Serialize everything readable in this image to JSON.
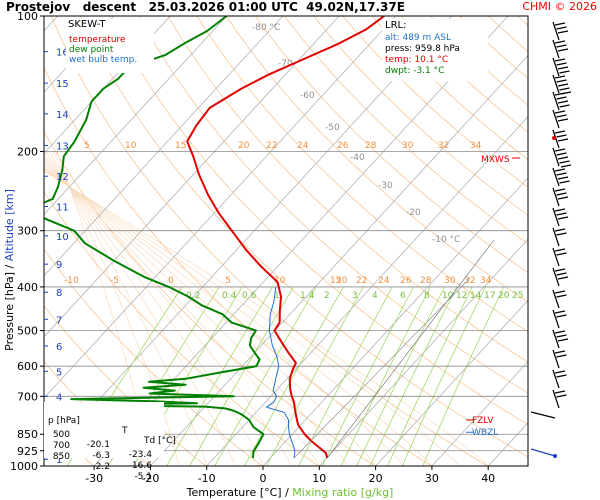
{
  "header": {
    "title": "Prostejov   descent   25.03.2026 01:00 UTC  49.02N,17.37E",
    "copyright": "CHMI © 2026"
  },
  "legend": {
    "title": "SKEW-T",
    "items": [
      {
        "label": "temperature",
        "color": "#e00000"
      },
      {
        "label": "dew point",
        "color": "#008000"
      },
      {
        "label": "wet bulb temp.",
        "color": "#1f6fd0"
      }
    ]
  },
  "lrl": {
    "title": "LRL:",
    "alt": "alt: 489 m ASL",
    "press": "press: 959.8 hPa",
    "temp": "temp: 10.1 °C",
    "dwpt": "dwpt: -3.1 °C"
  },
  "table": {
    "headers": [
      "p [hPa]",
      "T",
      "Td [°C]"
    ],
    "rows": [
      [
        "500",
        "-20.1",
        "-23.4"
      ],
      [
        "700",
        "-6.3",
        "-16.6"
      ],
      [
        "850",
        "2.2",
        "-5.1"
      ]
    ]
  },
  "chart_data": {
    "type": "line",
    "xlabel": "Temperature [°C]",
    "xlabel_extra": "Mixing ratio [g/kg]",
    "ylabel": "Pressure [hPa]",
    "ylabel_extra": "Altitude [km]",
    "x_ticks": [
      "-30",
      "-20",
      "-10",
      "0",
      "10",
      "20",
      "30",
      "40"
    ],
    "pressure_ticks": [
      "100",
      "200",
      "300",
      "400",
      "500",
      "600",
      "700",
      "850",
      "925",
      "1000"
    ],
    "altitude_ticks": [
      "1",
      "2",
      "3",
      "4",
      "5",
      "6",
      "7",
      "8",
      "9",
      "10",
      "11",
      "12",
      "13",
      "14",
      "15",
      "16"
    ],
    "mixing_ratio_labels": [
      "0.2",
      "0.4",
      "0.6",
      "1",
      "1.4",
      "2",
      "3",
      "4",
      "6",
      "8",
      "10",
      "12",
      "14",
      "17",
      "20",
      "25"
    ],
    "dry_adiabat_labels": [
      "-80 °C",
      "-70",
      "-60",
      "-50",
      "-40",
      "-30",
      "-20",
      "-10 °C"
    ],
    "theta_e_labels_upper": [
      "5",
      "10",
      "15",
      "20",
      "22",
      "24",
      "26",
      "28",
      "30",
      "32",
      "34"
    ],
    "theta_e_labels_lower": [
      "-10",
      "-5",
      "0",
      "5",
      "10",
      "15",
      "20",
      "22",
      "24",
      "26",
      "28",
      "30",
      "32",
      "34"
    ],
    "markers": [
      {
        "label": "MXWS",
        "color": "#e00000"
      },
      {
        "label": "FZLV",
        "color": "#e00000"
      },
      {
        "label": "WBZL",
        "color": "#1f6fd0"
      }
    ],
    "series": [
      {
        "name": "temperature",
        "color": "#e00000",
        "points": [
          [
            100,
            -52
          ],
          [
            107,
            -53
          ],
          [
            115,
            -55.5
          ],
          [
            124,
            -59
          ],
          [
            135,
            -63
          ],
          [
            145,
            -65.5
          ],
          [
            160,
            -68
          ],
          [
            175,
            -67.5
          ],
          [
            190,
            -66.5
          ],
          [
            205,
            -63
          ],
          [
            225,
            -59
          ],
          [
            250,
            -54
          ],
          [
            275,
            -49
          ],
          [
            300,
            -44
          ],
          [
            330,
            -38.5
          ],
          [
            360,
            -33
          ],
          [
            390,
            -27.5
          ],
          [
            420,
            -24.5
          ],
          [
            450,
            -22.5
          ],
          [
            480,
            -20.5
          ],
          [
            500,
            -20.1
          ],
          [
            530,
            -17
          ],
          [
            560,
            -14
          ],
          [
            590,
            -11
          ],
          [
            610,
            -10.5
          ],
          [
            640,
            -9.5
          ],
          [
            670,
            -8
          ],
          [
            700,
            -6.3
          ],
          [
            720,
            -5
          ],
          [
            750,
            -3.5
          ],
          [
            780,
            -2
          ],
          [
            810,
            -0.5
          ],
          [
            850,
            2.2
          ],
          [
            880,
            4.5
          ],
          [
            910,
            7
          ],
          [
            935,
            9
          ],
          [
            959.8,
            10.1
          ]
        ]
      },
      {
        "name": "dew point",
        "color": "#008000",
        "points": [
          [
            100,
            -80
          ],
          [
            108,
            -81
          ],
          [
            115,
            -83
          ],
          [
            122,
            -84.5
          ],
          [
            130,
            -89
          ],
          [
            138,
            -89
          ],
          [
            145,
            -90
          ],
          [
            155,
            -90
          ],
          [
            170,
            -88
          ],
          [
            190,
            -86.5
          ],
          [
            205,
            -86
          ],
          [
            220,
            -84
          ],
          [
            240,
            -82
          ],
          [
            255,
            -81
          ],
          [
            265,
            -83
          ],
          [
            280,
            -80
          ],
          [
            300,
            -72
          ],
          [
            320,
            -68
          ],
          [
            350,
            -60
          ],
          [
            380,
            -52
          ],
          [
            400,
            -46
          ],
          [
            420,
            -41
          ],
          [
            440,
            -37
          ],
          [
            460,
            -32
          ],
          [
            480,
            -29
          ],
          [
            500,
            -23.4
          ],
          [
            520,
            -23
          ],
          [
            540,
            -22
          ],
          [
            560,
            -20
          ],
          [
            580,
            -18
          ],
          [
            600,
            -17.5
          ],
          [
            620,
            -23
          ],
          [
            640,
            -28
          ],
          [
            650,
            -34
          ],
          [
            660,
            -27
          ],
          [
            670,
            -34
          ],
          [
            680,
            -28
          ],
          [
            690,
            -32
          ],
          [
            700,
            -16.6
          ],
          [
            710,
            -45
          ],
          [
            718,
            -30
          ],
          [
            725,
            -22
          ],
          [
            732,
            -42
          ],
          [
            738,
            -20
          ],
          [
            745,
            -16
          ],
          [
            755,
            -14
          ],
          [
            770,
            -12
          ],
          [
            790,
            -10
          ],
          [
            820,
            -8
          ],
          [
            850,
            -5.1
          ],
          [
            890,
            -4.5
          ],
          [
            930,
            -4
          ],
          [
            959.8,
            -3.1
          ]
        ]
      },
      {
        "name": "wet bulb temp.",
        "color": "#1f6fd0",
        "points": [
          [
            400,
            -27
          ],
          [
            430,
            -25
          ],
          [
            460,
            -23.5
          ],
          [
            500,
            -21
          ],
          [
            540,
            -18
          ],
          [
            570,
            -15.5
          ],
          [
            600,
            -13.5
          ],
          [
            640,
            -12
          ],
          [
            680,
            -10.5
          ],
          [
            700,
            -9
          ],
          [
            720,
            -8.5
          ],
          [
            740,
            -9
          ],
          [
            760,
            -5
          ],
          [
            790,
            -3
          ],
          [
            820,
            -1.8
          ],
          [
            850,
            -0.5
          ],
          [
            880,
            1
          ],
          [
            910,
            2.5
          ],
          [
            935,
            3.5
          ],
          [
            959.8,
            4.2
          ]
        ]
      }
    ]
  }
}
